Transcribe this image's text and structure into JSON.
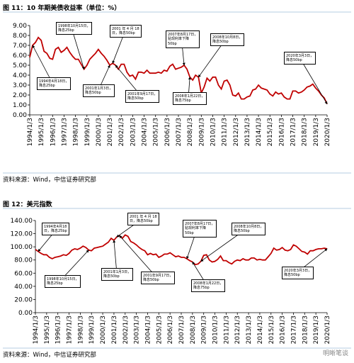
{
  "chart_data": [
    {
      "type": "line",
      "title": "图 11：10 年期美债收益率（单位：%）",
      "source": "资料来源：Wind，中信证券研究部",
      "color": "#c00000",
      "categories": [
        "1994/1/3",
        null,
        null,
        null,
        "1995/1/3",
        null,
        null,
        null,
        "1996/1/3",
        null,
        null,
        null,
        "1997/1/3",
        null,
        null,
        null,
        "1998/1/3",
        null,
        null,
        null,
        "1999/1/3",
        null,
        null,
        null,
        "2000/1/3",
        null,
        null,
        null,
        "2001/1/3",
        null,
        null,
        null,
        "2002/1/3",
        null,
        null,
        null,
        "2003/1/3",
        null,
        null,
        null,
        "2004/1/3",
        null,
        null,
        null,
        "2005/1/3",
        null,
        null,
        null,
        "2006/1/3",
        null,
        null,
        null,
        "2007/1/3",
        null,
        null,
        null,
        "2008/1/3",
        null,
        null,
        null,
        "2009/1/3",
        null,
        null,
        null,
        "2010/1/3",
        null,
        null,
        null,
        "2011/1/3",
        null,
        null,
        null,
        "2012/1/3",
        null,
        null,
        null,
        "2013/1/3",
        null,
        null,
        null,
        "2014/1/3",
        null,
        null,
        null,
        "2015/1/3",
        null,
        null,
        null,
        "2016/1/3",
        null,
        null,
        null,
        "2017/1/3",
        null,
        null,
        null,
        "2018/1/3",
        null,
        null,
        null,
        "2019/1/3",
        null,
        null,
        null,
        "2020/1/3"
      ],
      "values": [
        5.8,
        7.0,
        7.3,
        7.8,
        7.5,
        6.4,
        6.2,
        5.7,
        5.6,
        6.6,
        6.8,
        6.3,
        6.5,
        6.8,
        6.3,
        5.9,
        5.6,
        5.6,
        5.1,
        4.6,
        5.0,
        5.6,
        5.9,
        6.2,
        6.6,
        6.2,
        5.9,
        5.5,
        5.0,
        5.2,
        5.0,
        4.6,
        5.1,
        5.1,
        4.3,
        3.9,
        4.0,
        3.6,
        4.3,
        4.3,
        4.2,
        4.5,
        4.2,
        4.2,
        4.2,
        4.3,
        4.2,
        4.5,
        4.4,
        4.9,
        5.1,
        4.6,
        4.7,
        4.8,
        5.0,
        4.6,
        3.8,
        3.5,
        4.0,
        3.8,
        2.2,
        2.8,
        3.7,
        3.4,
        3.8,
        3.8,
        3.0,
        2.6,
        3.4,
        3.5,
        3.0,
        2.0,
        1.9,
        2.2,
        1.6,
        1.6,
        1.8,
        1.9,
        2.5,
        2.6,
        3.0,
        2.7,
        2.6,
        2.5,
        2.1,
        1.9,
        2.3,
        2.1,
        2.2,
        1.8,
        1.6,
        1.6,
        2.4,
        2.4,
        2.2,
        2.3,
        2.5,
        2.8,
        2.9,
        3.1,
        2.7,
        2.4,
        2.0,
        1.7,
        1.1
      ],
      "ylim": [
        0,
        9
      ],
      "yticks": [
        {
          "value": 0,
          "label": "0.00"
        },
        {
          "value": 1,
          "label": "1.00"
        },
        {
          "value": 2,
          "label": "2.00"
        },
        {
          "value": 3,
          "label": "3.00"
        },
        {
          "value": 4,
          "label": "4.00"
        },
        {
          "value": 5,
          "label": "5.00"
        },
        {
          "value": 6,
          "label": "6.00"
        },
        {
          "value": 7,
          "label": "7.00"
        },
        {
          "value": 8,
          "label": "8.00"
        },
        {
          "value": 9,
          "label": "9.00"
        }
      ],
      "annotations": [
        "1998年10月15日，\n降息25bp",
        "2001 年 4 月 18\n日，降息50bp",
        "2007年8月17日，\n贴现利率下降\n50bp",
        "2008年10月8日，\n降息50bp",
        "1994年4月18日，\n降息25bp",
        "2001年1月3日，\n降息50bp",
        "2001年9月17日，\n降息50bp",
        "2008年1月22日，\n降息75bp",
        "2020年3月3日，\n降息50bp"
      ]
    },
    {
      "type": "line",
      "title": "图 12：美元指数",
      "source": "资料来源：Wind，中信证券研究部",
      "color": "#c00000",
      "categories": [
        "1994/1/3",
        null,
        null,
        null,
        "1995/1/3",
        null,
        null,
        null,
        "1996/1/3",
        null,
        null,
        null,
        "1997/1/3",
        null,
        null,
        null,
        "1998/1/3",
        null,
        null,
        null,
        "1999/1/3",
        null,
        null,
        null,
        "2000/1/3",
        null,
        null,
        null,
        "2001/1/3",
        null,
        null,
        null,
        "2002/1/3",
        null,
        null,
        null,
        "2003/1/3",
        null,
        null,
        null,
        "2004/1/3",
        null,
        null,
        null,
        "2005/1/3",
        null,
        null,
        null,
        "2006/1/3",
        null,
        null,
        null,
        "2007/1/3",
        null,
        null,
        null,
        "2008/1/3",
        null,
        null,
        null,
        "2009/1/3",
        null,
        null,
        null,
        "2010/1/3",
        null,
        null,
        null,
        "2011/1/3",
        null,
        null,
        null,
        "2012/1/3",
        null,
        null,
        null,
        "2013/1/3",
        null,
        null,
        null,
        "2014/1/3",
        null,
        null,
        null,
        "2015/1/3",
        null,
        null,
        null,
        "2016/1/3",
        null,
        null,
        null,
        "2017/1/3",
        null,
        null,
        null,
        "2018/1/3",
        null,
        null,
        null,
        "2019/1/3",
        null,
        null,
        null,
        "2020/1/3"
      ],
      "values": [
        96,
        93,
        90,
        88,
        88,
        84,
        82,
        84,
        85,
        86,
        88,
        87,
        90,
        95,
        97,
        96,
        98,
        101,
        99,
        95,
        94,
        98,
        99,
        100,
        101,
        104,
        107,
        113,
        110,
        115,
        117,
        113,
        118,
        116,
        108,
        106,
        103,
        99,
        96,
        94,
        88,
        90,
        88,
        89,
        84,
        86,
        89,
        89,
        91,
        88,
        85,
        86,
        84,
        84,
        82,
        79,
        77,
        73,
        74,
        78,
        87,
        88,
        80,
        77,
        78,
        81,
        86,
        79,
        79,
        76,
        74,
        78,
        80,
        79,
        82,
        80,
        80,
        83,
        83,
        80,
        81,
        80,
        80,
        85,
        90,
        98,
        95,
        96,
        99,
        95,
        94,
        96,
        103,
        101,
        97,
        93,
        92,
        89,
        94,
        94,
        96,
        97,
        97,
        98,
        97
      ],
      "ylim": [
        0,
        140
      ],
      "yticks": [
        {
          "value": 0,
          "label": "0.00"
        },
        {
          "value": 20,
          "label": "20.00"
        },
        {
          "value": 40,
          "label": "40.00"
        },
        {
          "value": 60,
          "label": "60.00"
        },
        {
          "value": 80,
          "label": "80.00"
        },
        {
          "value": 100,
          "label": "100.00"
        },
        {
          "value": 120,
          "label": "120.00"
        },
        {
          "value": 140,
          "label": "140.00"
        }
      ],
      "annotations": [
        "1994年4月18\n日，降息25bp",
        "2001 年 4 月 18\n日，降息50bp",
        "2007年8月17日，\n贴现利率下降\n50bp",
        "2008年10月8日，\n降息50bp",
        "1998年10月15日，\n降息25bp",
        "2001年1月3日，\n降息50bp",
        "2001年9月17日，\n降息50bp",
        "2008年1月22日，\n降息75bp",
        "2020年3月3日，\n降息50bp"
      ]
    }
  ],
  "watermark": "明晰笔谈"
}
